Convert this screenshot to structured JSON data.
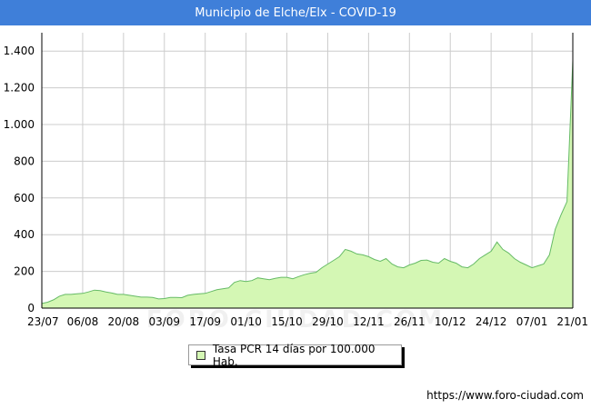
{
  "header": {
    "title": "Municipio de Elche/Elx - COVID-19"
  },
  "watermark": "FORO-CIUDAD.COM",
  "footer": {
    "source": "https://www.foro-ciudad.com"
  },
  "colors": {
    "title_bar": "#3f7fd9",
    "area_fill": "#d4f7b4",
    "area_line": "#66bb66",
    "grid": "#cccccc"
  },
  "chart_data": {
    "type": "area",
    "title": "Municipio de Elche/Elx - COVID-19",
    "xlabel": "",
    "ylabel": "",
    "ylim": [
      0,
      1500
    ],
    "yticks": [
      0,
      200,
      400,
      600,
      800,
      1000,
      1200,
      1400
    ],
    "ytick_labels": [
      "0",
      "200",
      "400",
      "600",
      "800",
      "1.000",
      "1.200",
      "1.400"
    ],
    "xticks": [
      "23/07",
      "06/08",
      "20/08",
      "03/09",
      "17/09",
      "01/10",
      "15/10",
      "29/10",
      "12/11",
      "26/11",
      "10/12",
      "24/12",
      "07/01",
      "21/01"
    ],
    "grid": true,
    "legend_position": "bottom",
    "series": [
      {
        "name": "Tasa PCR 14 días por 100.000 Hab.",
        "x": [
          "23/07",
          "25/07",
          "27/07",
          "29/07",
          "31/07",
          "02/08",
          "04/08",
          "06/08",
          "08/08",
          "10/08",
          "12/08",
          "14/08",
          "16/08",
          "18/08",
          "20/08",
          "22/08",
          "24/08",
          "26/08",
          "28/08",
          "30/08",
          "01/09",
          "03/09",
          "05/09",
          "07/09",
          "09/09",
          "11/09",
          "13/09",
          "15/09",
          "17/09",
          "19/09",
          "21/09",
          "23/09",
          "25/09",
          "27/09",
          "29/09",
          "01/10",
          "03/10",
          "05/10",
          "07/10",
          "09/10",
          "11/10",
          "13/10",
          "15/10",
          "17/10",
          "19/10",
          "21/10",
          "23/10",
          "25/10",
          "27/10",
          "29/10",
          "31/10",
          "02/11",
          "04/11",
          "06/11",
          "08/11",
          "10/11",
          "12/11",
          "14/11",
          "16/11",
          "18/11",
          "20/11",
          "22/11",
          "24/11",
          "26/11",
          "28/11",
          "30/11",
          "02/12",
          "04/12",
          "06/12",
          "08/12",
          "10/12",
          "12/12",
          "14/12",
          "16/12",
          "18/12",
          "20/12",
          "22/12",
          "24/12",
          "26/12",
          "28/12",
          "30/12",
          "01/01",
          "03/01",
          "05/01",
          "07/01",
          "09/01",
          "11/01",
          "13/01",
          "15/01",
          "17/01",
          "19/01",
          "21/01"
        ],
        "values": [
          25,
          32,
          45,
          65,
          75,
          75,
          78,
          80,
          88,
          98,
          95,
          88,
          82,
          75,
          75,
          70,
          65,
          60,
          60,
          58,
          50,
          52,
          58,
          58,
          57,
          70,
          75,
          78,
          80,
          90,
          100,
          105,
          110,
          140,
          150,
          145,
          150,
          165,
          160,
          155,
          162,
          168,
          168,
          160,
          172,
          182,
          190,
          195,
          220,
          240,
          260,
          280,
          320,
          310,
          295,
          290,
          280,
          265,
          255,
          270,
          240,
          225,
          220,
          235,
          245,
          260,
          262,
          250,
          245,
          270,
          255,
          245,
          225,
          220,
          240,
          270,
          290,
          310,
          360,
          320,
          300,
          270,
          250,
          235,
          220,
          230,
          240,
          290,
          430,
          510,
          580,
          1350
        ]
      }
    ]
  }
}
